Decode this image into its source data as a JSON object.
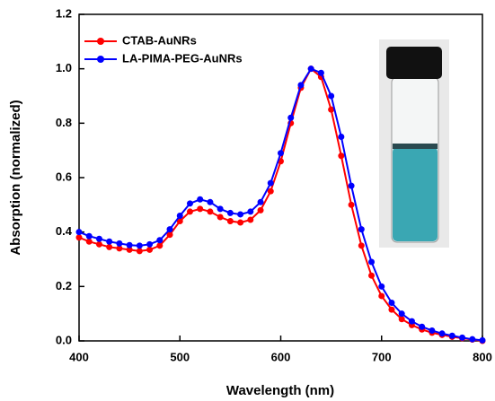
{
  "chart_data": {
    "type": "line",
    "x_label": "Wavelength (nm)",
    "y_label": "Absorption (normalized)",
    "x": [
      400,
      410,
      420,
      430,
      440,
      450,
      460,
      470,
      480,
      490,
      500,
      510,
      520,
      530,
      540,
      550,
      560,
      570,
      580,
      590,
      600,
      610,
      620,
      630,
      640,
      650,
      660,
      670,
      680,
      690,
      700,
      710,
      720,
      730,
      740,
      750,
      760,
      770,
      780,
      790,
      800
    ],
    "series": [
      {
        "name": "CTAB-AuNRs",
        "color": "#ff0000",
        "values": [
          0.38,
          0.365,
          0.355,
          0.345,
          0.34,
          0.335,
          0.33,
          0.335,
          0.35,
          0.39,
          0.44,
          0.475,
          0.485,
          0.475,
          0.455,
          0.44,
          0.435,
          0.445,
          0.48,
          0.55,
          0.66,
          0.8,
          0.93,
          1.0,
          0.97,
          0.85,
          0.68,
          0.5,
          0.35,
          0.24,
          0.165,
          0.115,
          0.08,
          0.058,
          0.042,
          0.03,
          0.022,
          0.015,
          0.01,
          0.005,
          0.0
        ]
      },
      {
        "name": "LA-PIMA-PEG-AuNRs",
        "color": "#0000ff",
        "values": [
          0.4,
          0.385,
          0.375,
          0.365,
          0.358,
          0.352,
          0.35,
          0.355,
          0.37,
          0.41,
          0.46,
          0.505,
          0.52,
          0.51,
          0.485,
          0.47,
          0.465,
          0.475,
          0.51,
          0.58,
          0.69,
          0.82,
          0.94,
          1.0,
          0.985,
          0.9,
          0.75,
          0.57,
          0.41,
          0.29,
          0.2,
          0.14,
          0.1,
          0.072,
          0.052,
          0.038,
          0.027,
          0.019,
          0.012,
          0.006,
          0.002
        ]
      }
    ],
    "xlim": [
      400,
      800
    ],
    "xticks": [
      400,
      500,
      600,
      700,
      800
    ],
    "ylim": [
      0,
      1.2
    ],
    "yticks": [
      {
        "value": 0,
        "label": "0.0"
      },
      0.2,
      0.4,
      0.6,
      0.8,
      {
        "value": 1,
        "label": "1.0"
      },
      1.2
    ],
    "legend": "top-left"
  }
}
